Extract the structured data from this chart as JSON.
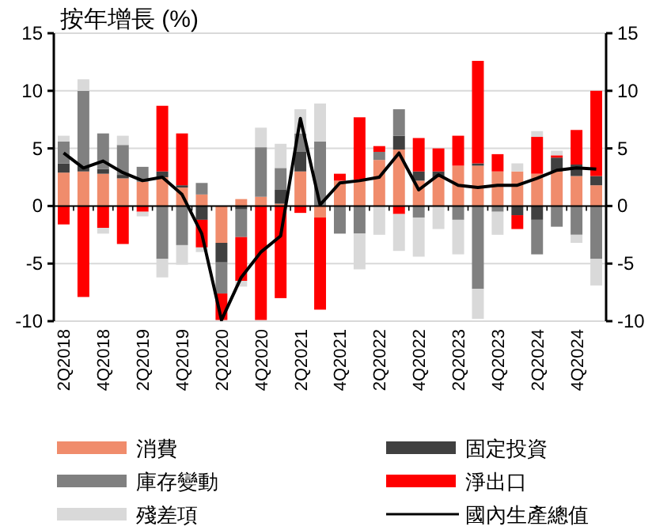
{
  "chart_data": {
    "type": "bar",
    "stacked": true,
    "title": "按年增長 (%)",
    "categories": [
      "2Q2018",
      null,
      "4Q2018",
      null,
      "2Q2019",
      null,
      "4Q2019",
      null,
      "2Q2020",
      null,
      "4Q2020",
      null,
      "2Q2021",
      null,
      "4Q2021",
      null,
      "2Q2022",
      null,
      "4Q2022",
      null,
      "2Q2023",
      null,
      "4Q2023",
      null,
      "2Q2024",
      null,
      "4Q2024",
      null
    ],
    "ylim": [
      -10,
      15
    ],
    "yticks": [
      -10,
      -5,
      0,
      5,
      10,
      15
    ],
    "y2lim": [
      -10,
      15
    ],
    "y2ticks": [
      -10,
      -5,
      0,
      5,
      10,
      15
    ],
    "grid": "y",
    "legend": "bottom",
    "series": [
      {
        "name": "消費",
        "color": "#f08c6c",
        "values": [
          2.9,
          3.0,
          2.8,
          2.4,
          2.1,
          2.5,
          1.6,
          1.0,
          -3.2,
          0.6,
          0.8,
          0.2,
          3.0,
          -1.0,
          2.2,
          2.3,
          4.0,
          4.9,
          2.2,
          2.5,
          3.5,
          3.5,
          3.0,
          3.0,
          2.8,
          3.0,
          2.6,
          1.8
        ]
      },
      {
        "name": "固定投資",
        "color": "#404040",
        "values": [
          0.8,
          0.5,
          0.4,
          0.3,
          null,
          0.5,
          0.2,
          -1.2,
          -1.7,
          -0.3,
          null,
          1.2,
          1.7,
          null,
          null,
          null,
          null,
          1.2,
          0.8,
          0.5,
          null,
          0.2,
          null,
          -0.8,
          -1.2,
          1.2,
          1.0,
          0.8
        ]
      },
      {
        "name": "庫存變動",
        "color": "#808080",
        "values": [
          1.9,
          6.5,
          3.1,
          2.6,
          1.3,
          -4.6,
          -3.4,
          1.0,
          -2.7,
          -2.4,
          4.3,
          1.9,
          1.6,
          5.6,
          -2.4,
          -2.4,
          0.7,
          2.3,
          -1.0,
          null,
          -1.2,
          -7.2,
          -0.5,
          null,
          -3.0,
          -1.8,
          -2.5,
          -4.6
        ]
      },
      {
        "name": "淨出口",
        "color": "#ff0000",
        "values": [
          -1.6,
          -7.9,
          -1.9,
          -3.3,
          -0.5,
          5.7,
          4.5,
          -2.4,
          -2.3,
          -3.8,
          -9.9,
          -8.0,
          -0.6,
          -8.0,
          0.6,
          5.4,
          0.5,
          -0.7,
          2.9,
          2.0,
          2.6,
          8.9,
          1.5,
          -1.2,
          3.2,
          0.2,
          3.0,
          7.4
        ]
      },
      {
        "name": "殘差項",
        "color": "#d9d9d9",
        "values": [
          0.5,
          1.0,
          -0.5,
          0.8,
          -0.4,
          -1.6,
          -1.7,
          -0.4,
          null,
          -0.5,
          1.7,
          2.1,
          2.1,
          3.3,
          null,
          -3.1,
          -2.5,
          -3.2,
          -3.4,
          -2.0,
          -3.0,
          -2.6,
          -2.0,
          0.7,
          0.5,
          0.4,
          -0.7,
          -2.3
        ]
      },
      {
        "name": "國內生產總值",
        "type": "line",
        "color": "#000000",
        "values": [
          4.6,
          3.3,
          3.9,
          2.9,
          2.2,
          2.5,
          1.0,
          -2.4,
          -9.9,
          -6.2,
          -4.0,
          -2.6,
          7.6,
          0.1,
          2.0,
          2.2,
          2.5,
          4.6,
          1.4,
          2.7,
          1.8,
          1.6,
          1.8,
          1.8,
          2.4,
          3.1,
          3.3,
          3.2
        ]
      }
    ]
  }
}
